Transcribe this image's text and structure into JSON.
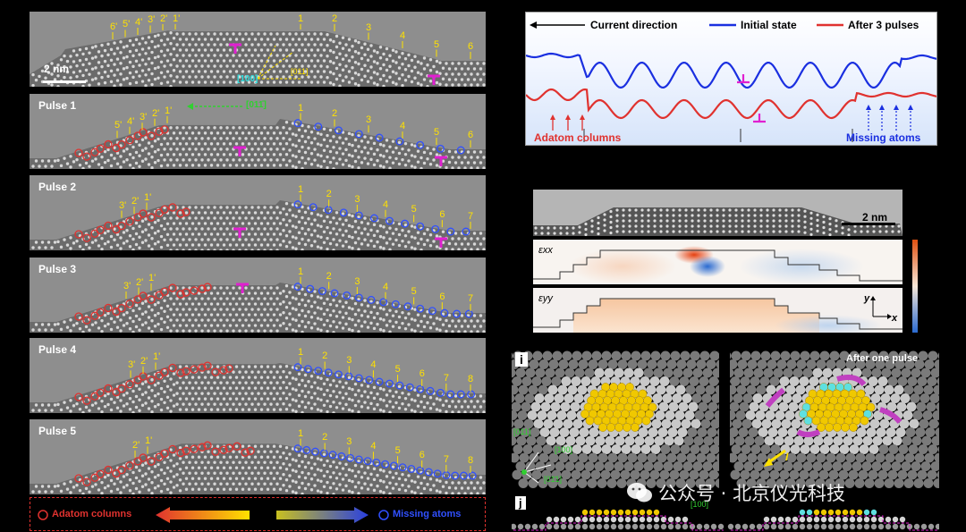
{
  "panels_left": [
    {
      "label": "",
      "scalebar": "2 nm",
      "annotations": [
        "6'",
        "5'",
        "4'",
        "3'",
        "2'",
        "1'",
        "1",
        "2",
        "3",
        "4",
        "5",
        "6"
      ],
      "dirs": [
        "[100]",
        "[011]",
        "[02̄0]",
        "[011̄]"
      ]
    },
    {
      "label": "Pulse 1",
      "dir_label": "[011̄]",
      "annotations": [
        "5'",
        "4'",
        "3'",
        "2'",
        "1'",
        "1",
        "2",
        "3",
        "4",
        "5",
        "6"
      ]
    },
    {
      "label": "Pulse 2",
      "annotations": [
        "3'",
        "2'",
        "1'",
        "1",
        "2",
        "3",
        "4",
        "5",
        "6",
        "7"
      ]
    },
    {
      "label": "Pulse 3",
      "annotations": [
        "3'",
        "2'",
        "1'",
        "1",
        "2",
        "3",
        "4",
        "5",
        "6",
        "7"
      ]
    },
    {
      "label": "Pulse 4",
      "annotations": [
        "3'",
        "2'",
        "1'",
        "1",
        "2",
        "3",
        "4",
        "5",
        "6",
        "7",
        "8"
      ]
    },
    {
      "label": "Pulse 5",
      "annotations": [
        "2'",
        "1'",
        "1",
        "2",
        "3",
        "4",
        "5",
        "6",
        "7",
        "8"
      ]
    }
  ],
  "legend_bottom": {
    "left": "Adatom columns",
    "right": "Missing atoms"
  },
  "profile_panel": {
    "current_direction": "Current direction",
    "initial_state": "Initial state",
    "after_pulses": "After 3 pulses",
    "adatom_columns": "Adatom columns",
    "missing_atoms": "Missing atoms"
  },
  "strain_panel": {
    "scalebar": "2 nm",
    "exx": "εxx",
    "eyy": "εyy",
    "axis_y": "y",
    "axis_x": "x"
  },
  "panel_i": {
    "label": "i",
    "after_label": "After one pulse",
    "dirs": [
      "[011]",
      "[100]",
      "[01̄1]"
    ],
    "current": "I"
  },
  "panel_j": {
    "label": "j",
    "dir": "[100]"
  },
  "watermark": "公众号 · 北京仪光科技",
  "colors": {
    "blue": "#1a2fe0",
    "red": "#e0322f",
    "yellow": "#ffe100",
    "magenta": "#e020d0",
    "green": "#30d030",
    "cyan": "#30e0e0"
  }
}
